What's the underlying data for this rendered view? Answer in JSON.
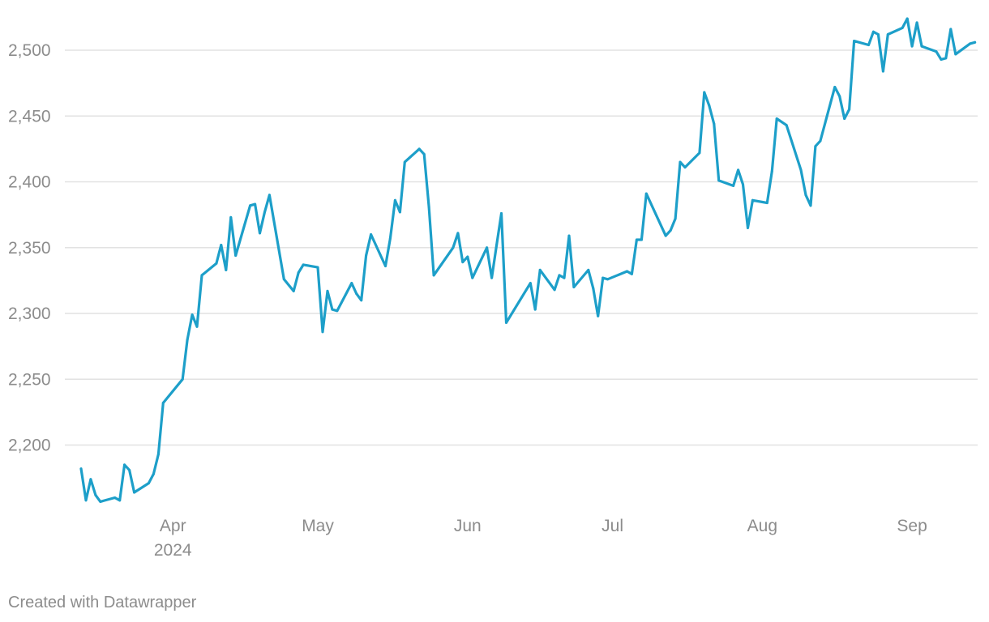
{
  "chart_data": {
    "type": "line",
    "title": "",
    "xlabel": "",
    "ylabel": "",
    "ylim": [
      2150,
      2530
    ],
    "xlim": [
      "2024-03-13",
      "2024-09-20"
    ],
    "yticks": [
      2200,
      2250,
      2300,
      2350,
      2400,
      2450,
      2500
    ],
    "ytick_labels": [
      "2,200",
      "2,250",
      "2,300",
      "2,350",
      "2,400",
      "2,450",
      "2,500"
    ],
    "xticks": [
      {
        "date": "2024-04-01",
        "label": "Apr",
        "sublabel": "2024"
      },
      {
        "date": "2024-05-01",
        "label": "May",
        "sublabel": ""
      },
      {
        "date": "2024-06-01",
        "label": "Jun",
        "sublabel": ""
      },
      {
        "date": "2024-07-01",
        "label": "Jul",
        "sublabel": ""
      },
      {
        "date": "2024-08-01",
        "label": "Aug",
        "sublabel": ""
      },
      {
        "date": "2024-09-01",
        "label": "Sep",
        "sublabel": ""
      }
    ],
    "grid": true,
    "legend": "none",
    "series": [
      {
        "color": "#1d9fc9",
        "points": [
          [
            "2024-03-13",
            2182
          ],
          [
            "2024-03-14",
            2158
          ],
          [
            "2024-03-15",
            2174
          ],
          [
            "2024-03-16",
            2162
          ],
          [
            "2024-03-17",
            2157
          ],
          [
            "2024-03-20",
            2160
          ],
          [
            "2024-03-21",
            2158
          ],
          [
            "2024-03-22",
            2185
          ],
          [
            "2024-03-23",
            2181
          ],
          [
            "2024-03-24",
            2164
          ],
          [
            "2024-03-27",
            2171
          ],
          [
            "2024-03-28",
            2178
          ],
          [
            "2024-03-29",
            2193
          ],
          [
            "2024-03-30",
            2232
          ],
          [
            "2024-04-03",
            2250
          ],
          [
            "2024-04-04",
            2280
          ],
          [
            "2024-04-05",
            2299
          ],
          [
            "2024-04-06",
            2290
          ],
          [
            "2024-04-07",
            2329
          ],
          [
            "2024-04-10",
            2338
          ],
          [
            "2024-04-11",
            2352
          ],
          [
            "2024-04-12",
            2333
          ],
          [
            "2024-04-13",
            2373
          ],
          [
            "2024-04-14",
            2344
          ],
          [
            "2024-04-17",
            2382
          ],
          [
            "2024-04-18",
            2383
          ],
          [
            "2024-04-19",
            2361
          ],
          [
            "2024-04-20",
            2377
          ],
          [
            "2024-04-21",
            2390
          ],
          [
            "2024-04-24",
            2326
          ],
          [
            "2024-04-26",
            2317
          ],
          [
            "2024-04-27",
            2331
          ],
          [
            "2024-04-28",
            2337
          ],
          [
            "2024-05-01",
            2335
          ],
          [
            "2024-05-02",
            2286
          ],
          [
            "2024-05-03",
            2317
          ],
          [
            "2024-05-04",
            2303
          ],
          [
            "2024-05-05",
            2302
          ],
          [
            "2024-05-08",
            2323
          ],
          [
            "2024-05-09",
            2315
          ],
          [
            "2024-05-10",
            2310
          ],
          [
            "2024-05-11",
            2344
          ],
          [
            "2024-05-12",
            2360
          ],
          [
            "2024-05-15",
            2336
          ],
          [
            "2024-05-16",
            2357
          ],
          [
            "2024-05-17",
            2386
          ],
          [
            "2024-05-18",
            2377
          ],
          [
            "2024-05-19",
            2415
          ],
          [
            "2024-05-22",
            2425
          ],
          [
            "2024-05-23",
            2421
          ],
          [
            "2024-05-24",
            2381
          ],
          [
            "2024-05-25",
            2329
          ],
          [
            "2024-05-29",
            2350
          ],
          [
            "2024-05-30",
            2361
          ],
          [
            "2024-05-31",
            2339
          ],
          [
            "2024-06-01",
            2343
          ],
          [
            "2024-06-02",
            2327
          ],
          [
            "2024-06-05",
            2350
          ],
          [
            "2024-06-06",
            2327
          ],
          [
            "2024-06-07",
            2352
          ],
          [
            "2024-06-08",
            2376
          ],
          [
            "2024-06-09",
            2293
          ],
          [
            "2024-06-14",
            2323
          ],
          [
            "2024-06-15",
            2303
          ],
          [
            "2024-06-16",
            2333
          ],
          [
            "2024-06-19",
            2318
          ],
          [
            "2024-06-20",
            2329
          ],
          [
            "2024-06-21",
            2327
          ],
          [
            "2024-06-22",
            2359
          ],
          [
            "2024-06-23",
            2320
          ],
          [
            "2024-06-26",
            2333
          ],
          [
            "2024-06-27",
            2319
          ],
          [
            "2024-06-28",
            2298
          ],
          [
            "2024-06-29",
            2327
          ],
          [
            "2024-06-30",
            2326
          ],
          [
            "2024-07-04",
            2332
          ],
          [
            "2024-07-05",
            2330
          ],
          [
            "2024-07-06",
            2356
          ],
          [
            "2024-07-07",
            2356
          ],
          [
            "2024-07-08",
            2391
          ],
          [
            "2024-07-12",
            2359
          ],
          [
            "2024-07-13",
            2363
          ],
          [
            "2024-07-14",
            2372
          ],
          [
            "2024-07-15",
            2415
          ],
          [
            "2024-07-16",
            2411
          ],
          [
            "2024-07-19",
            2422
          ],
          [
            "2024-07-20",
            2468
          ],
          [
            "2024-07-21",
            2458
          ],
          [
            "2024-07-22",
            2444
          ],
          [
            "2024-07-23",
            2401
          ],
          [
            "2024-07-26",
            2397
          ],
          [
            "2024-07-27",
            2409
          ],
          [
            "2024-07-28",
            2398
          ],
          [
            "2024-07-29",
            2365
          ],
          [
            "2024-07-30",
            2386
          ],
          [
            "2024-08-02",
            2384
          ],
          [
            "2024-08-03",
            2408
          ],
          [
            "2024-08-04",
            2448
          ],
          [
            "2024-08-06",
            2443
          ],
          [
            "2024-08-09",
            2409
          ],
          [
            "2024-08-10",
            2390
          ],
          [
            "2024-08-11",
            2382
          ],
          [
            "2024-08-12",
            2427
          ],
          [
            "2024-08-13",
            2431
          ],
          [
            "2024-08-16",
            2472
          ],
          [
            "2024-08-17",
            2465
          ],
          [
            "2024-08-18",
            2448
          ],
          [
            "2024-08-19",
            2455
          ],
          [
            "2024-08-20",
            2507
          ],
          [
            "2024-08-23",
            2504
          ],
          [
            "2024-08-24",
            2514
          ],
          [
            "2024-08-25",
            2512
          ],
          [
            "2024-08-26",
            2484
          ],
          [
            "2024-08-27",
            2512
          ],
          [
            "2024-08-30",
            2517
          ],
          [
            "2024-08-31",
            2524
          ],
          [
            "2024-09-01",
            2503
          ],
          [
            "2024-09-02",
            2521
          ],
          [
            "2024-09-03",
            2503
          ],
          [
            "2024-09-06",
            2499
          ],
          [
            "2024-09-07",
            2493
          ],
          [
            "2024-09-08",
            2494
          ],
          [
            "2024-09-09",
            2516
          ],
          [
            "2024-09-10",
            2497
          ],
          [
            "2024-09-13",
            2505
          ],
          [
            "2024-09-14",
            2506
          ]
        ]
      }
    ]
  },
  "footer": {
    "credit": "Created with Datawrapper"
  }
}
